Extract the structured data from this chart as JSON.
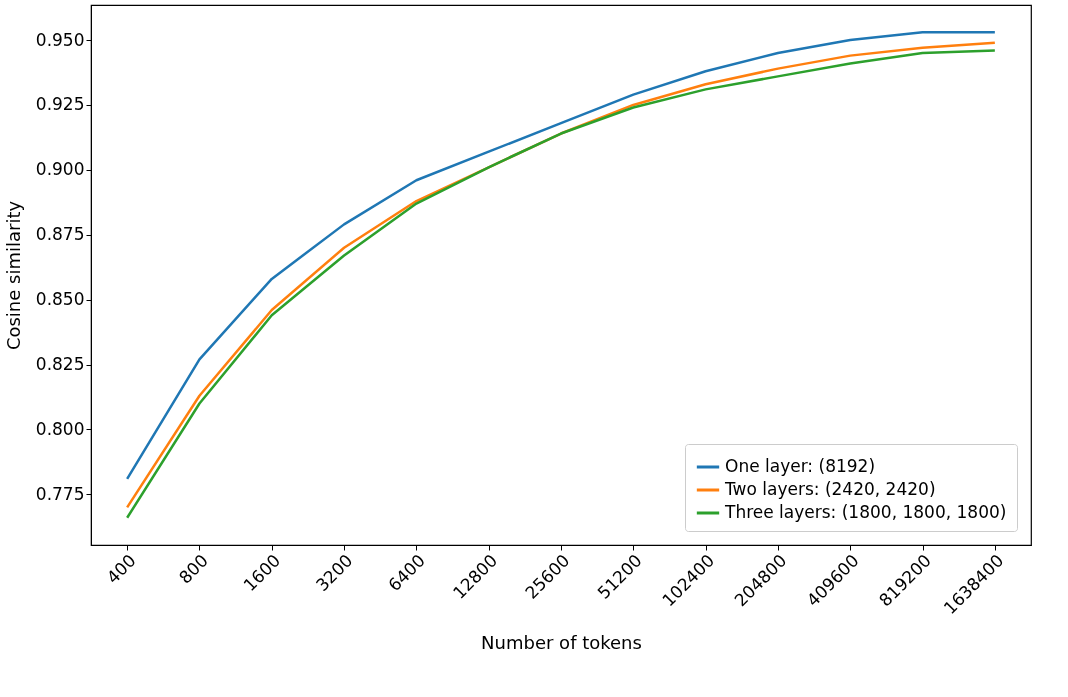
{
  "chart_data": {
    "type": "line",
    "xlabel": "Number of tokens",
    "ylabel": "Cosine similarity",
    "categories": [
      "400",
      "800",
      "1600",
      "3200",
      "6400",
      "12800",
      "25600",
      "51200",
      "102400",
      "204800",
      "409600",
      "819200",
      "1638400"
    ],
    "series": [
      {
        "name": "One layer: (8192)",
        "color": "#1f77b4",
        "values": [
          0.781,
          0.827,
          0.858,
          0.879,
          0.896,
          0.907,
          0.918,
          0.929,
          0.938,
          0.945,
          0.95,
          0.953,
          0.953
        ]
      },
      {
        "name": "Two layers: (2420, 2420)",
        "color": "#ff7f0e",
        "values": [
          0.77,
          0.813,
          0.846,
          0.87,
          0.888,
          0.901,
          0.914,
          0.925,
          0.933,
          0.939,
          0.944,
          0.947,
          0.949
        ]
      },
      {
        "name": "Three layers: (1800, 1800, 1800)",
        "color": "#2ca02c",
        "values": [
          0.766,
          0.81,
          0.844,
          0.867,
          0.887,
          0.901,
          0.914,
          0.924,
          0.931,
          0.936,
          0.941,
          0.945,
          0.946
        ]
      }
    ],
    "ylim": [
      0.7555,
      0.9635
    ],
    "yticks": [
      0.775,
      {
        "value": 0.8,
        "label": "0.800"
      },
      0.825,
      {
        "value": 0.85,
        "label": "0.850"
      },
      0.875,
      {
        "value": 0.9,
        "label": "0.900"
      },
      0.925,
      {
        "value": 0.95,
        "label": "0.950"
      }
    ],
    "legend": "bottom right",
    "grid": false,
    "marker": "none",
    "line_style": "solid"
  }
}
